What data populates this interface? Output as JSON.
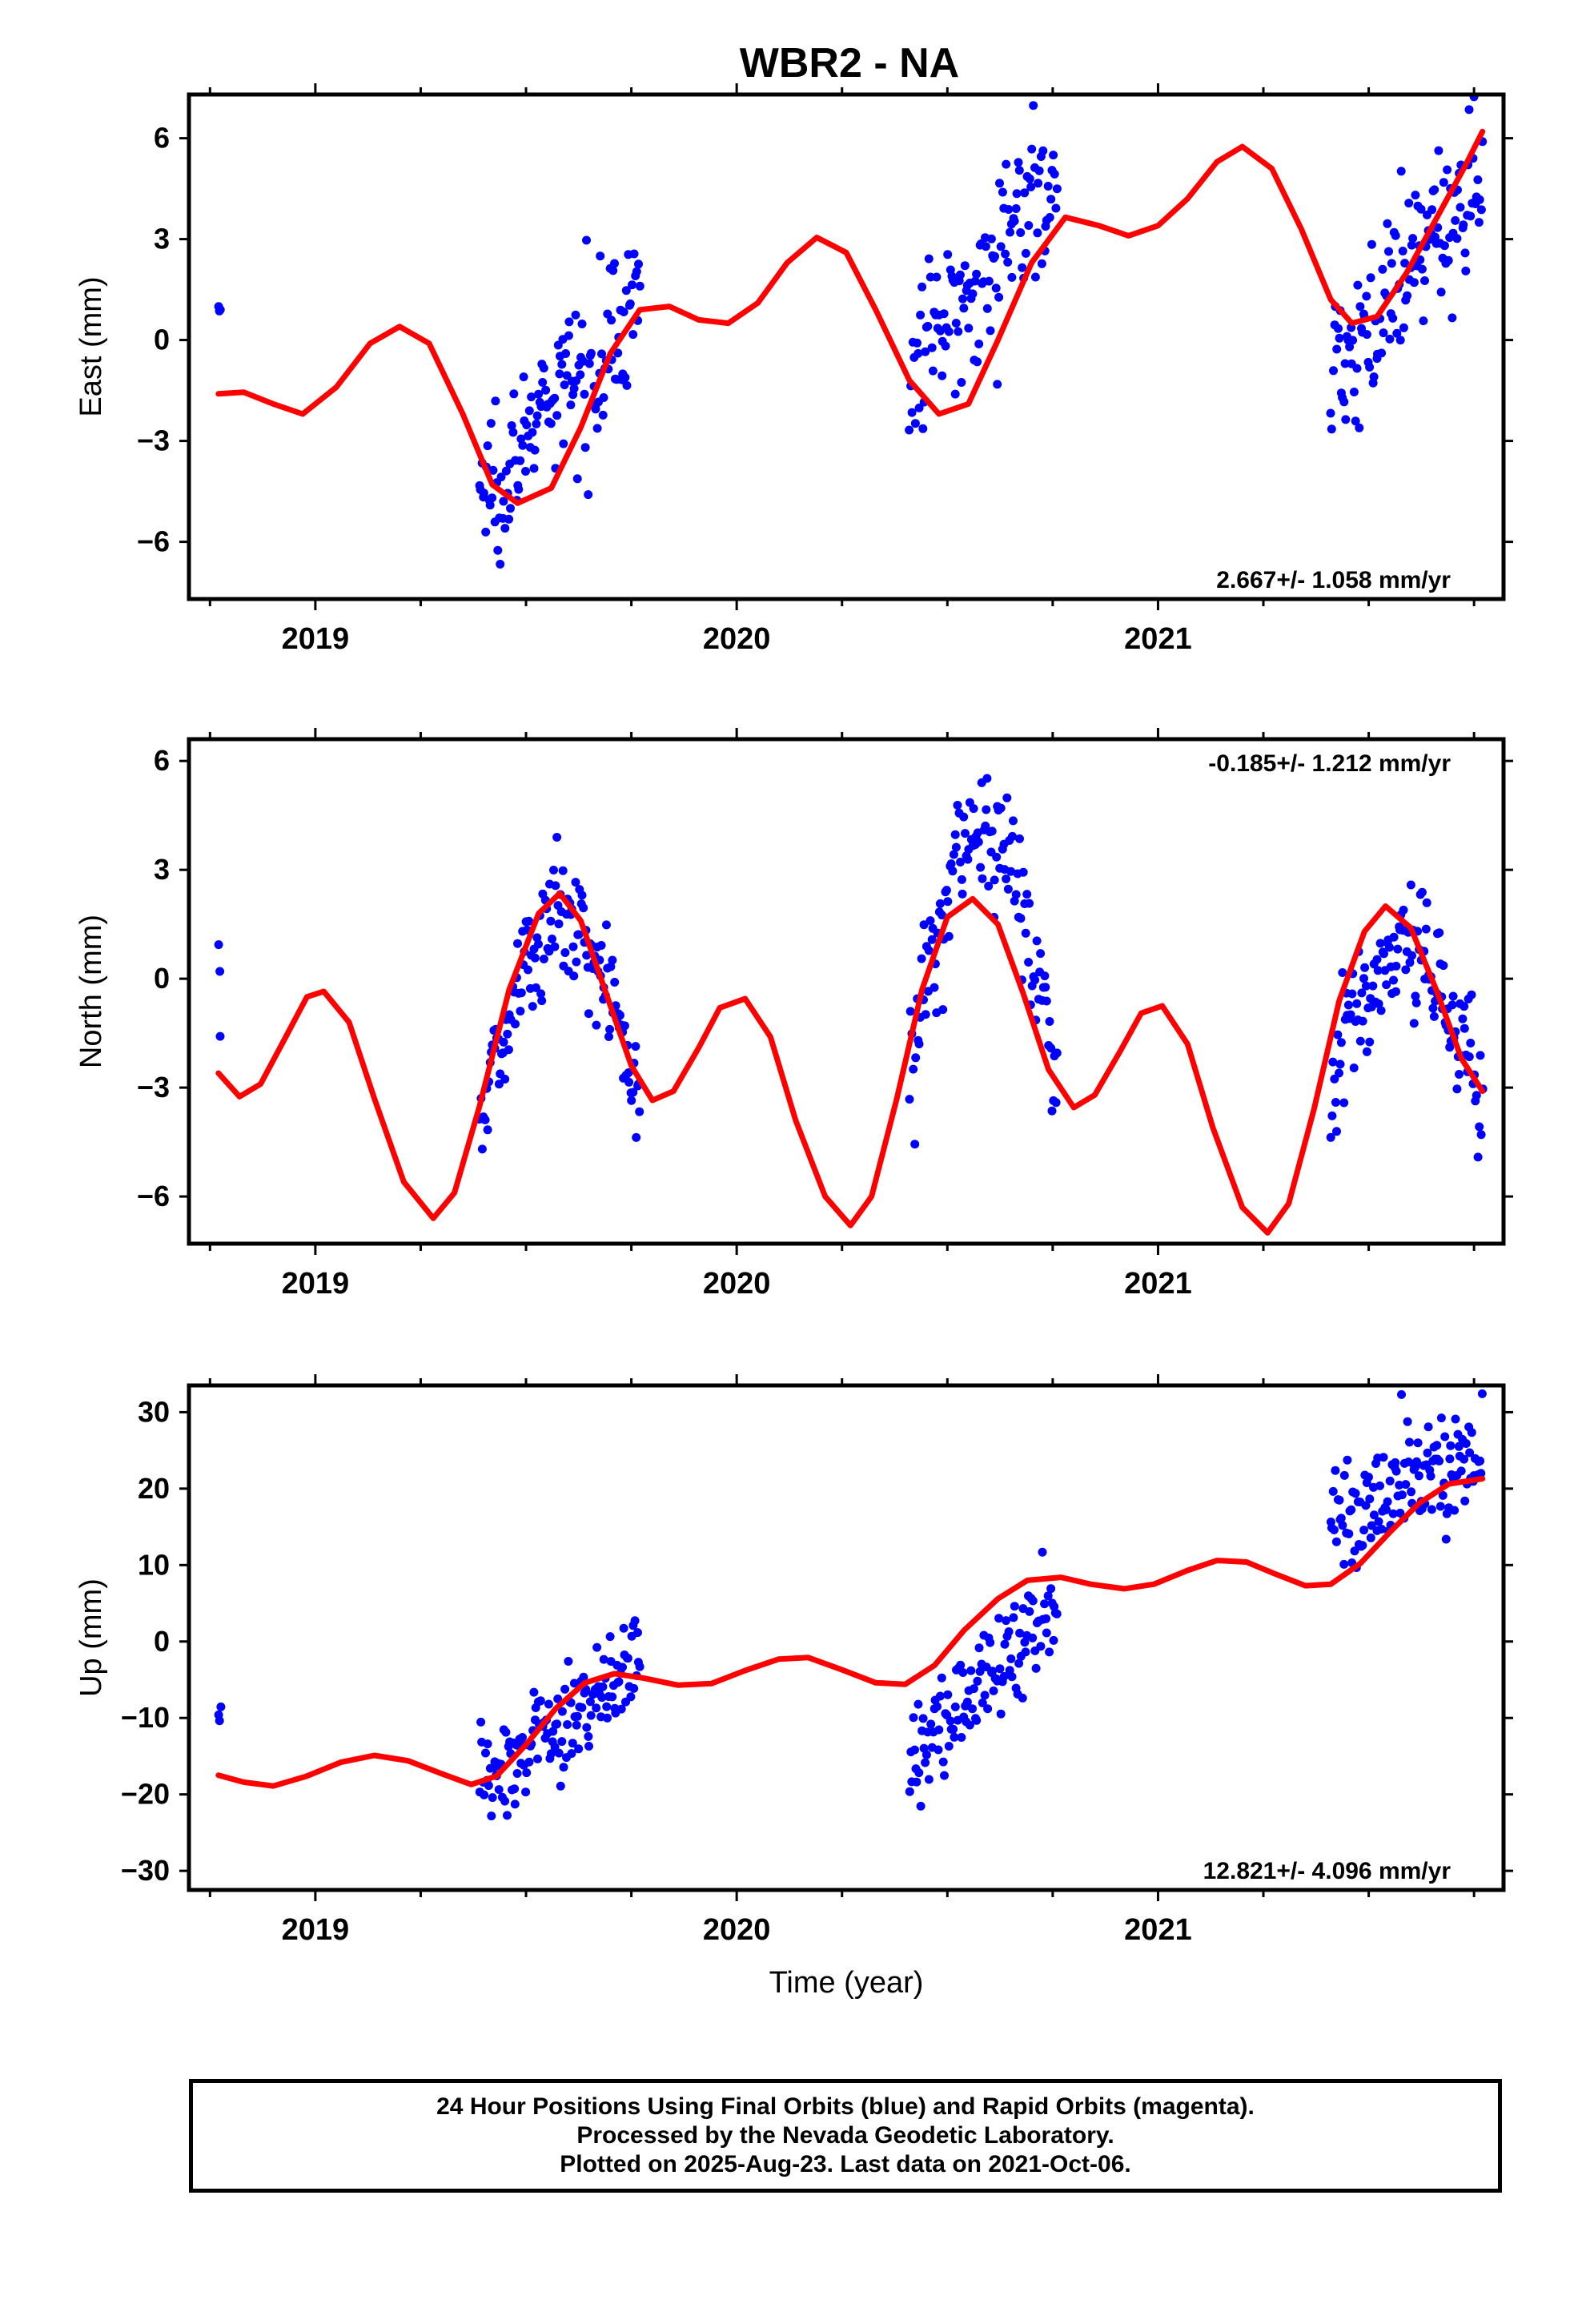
{
  "title": "WBR2 - NA",
  "colors": {
    "data_points": "#0000ff",
    "model_line": "#ff0000",
    "frame": "#000000"
  },
  "chart_data": [
    {
      "type": "scatter",
      "panel": "east",
      "ylabel": "East (mm)",
      "xlabel": "",
      "xlim": [
        2018.7,
        2021.82
      ],
      "ylim": [
        -7.7,
        7.3
      ],
      "yticks": [
        -6,
        -3,
        0,
        3,
        6
      ],
      "yticklabels": [
        "−6",
        "−3",
        "0",
        "3",
        "6"
      ],
      "xticks": [
        2019,
        2020,
        2021
      ],
      "xticklabels": [
        "2019",
        "2020",
        "2021"
      ],
      "rate_label": "2.667+/- 1.058 mm/yr",
      "rate_position": "bottom-right",
      "grid": false,
      "series": [
        {
          "role": "data",
          "segments": [
            {
              "start": 2018.77,
              "end": 2018.775,
              "n": 3,
              "y_start": 1.0,
              "y_end": 1.0,
              "noise": 1.0
            },
            {
              "start": 2019.39,
              "end": 2019.77,
              "n": 140,
              "y_start": -4.6,
              "y_end": 1.2,
              "noise": 1.6
            },
            {
              "start": 2020.41,
              "end": 2020.76,
              "n": 120,
              "y_start": -1.0,
              "y_end": 5.2,
              "noise": 1.7
            },
            {
              "start": 2021.41,
              "end": 2021.77,
              "n": 130,
              "y_start": -1.2,
              "y_end": 5.0,
              "noise": 1.6
            }
          ]
        },
        {
          "role": "model",
          "points": [
            [
              2018.77,
              -1.6
            ],
            [
              2018.83,
              -1.55
            ],
            [
              2018.9,
              -1.9
            ],
            [
              2018.97,
              -2.2
            ],
            [
              2019.05,
              -1.4
            ],
            [
              2019.13,
              -0.1
            ],
            [
              2019.2,
              0.4
            ],
            [
              2019.27,
              -0.1
            ],
            [
              2019.35,
              -2.2
            ],
            [
              2019.42,
              -4.3
            ],
            [
              2019.48,
              -4.85
            ],
            [
              2019.56,
              -4.4
            ],
            [
              2019.63,
              -2.6
            ],
            [
              2019.7,
              -0.4
            ],
            [
              2019.77,
              0.9
            ],
            [
              2019.84,
              1.0
            ],
            [
              2019.91,
              0.6
            ],
            [
              2019.98,
              0.5
            ],
            [
              2020.05,
              1.1
            ],
            [
              2020.12,
              2.3
            ],
            [
              2020.19,
              3.05
            ],
            [
              2020.26,
              2.6
            ],
            [
              2020.33,
              0.9
            ],
            [
              2020.41,
              -1.2
            ],
            [
              2020.48,
              -2.2
            ],
            [
              2020.55,
              -1.9
            ],
            [
              2020.62,
              0.0
            ],
            [
              2020.7,
              2.3
            ],
            [
              2020.78,
              3.65
            ],
            [
              2020.86,
              3.4
            ],
            [
              2020.93,
              3.1
            ],
            [
              2021.0,
              3.4
            ],
            [
              2021.07,
              4.2
            ],
            [
              2021.14,
              5.3
            ],
            [
              2021.2,
              5.75
            ],
            [
              2021.27,
              5.1
            ],
            [
              2021.34,
              3.3
            ],
            [
              2021.41,
              1.2
            ],
            [
              2021.46,
              0.5
            ],
            [
              2021.52,
              0.7
            ],
            [
              2021.59,
              2.0
            ],
            [
              2021.66,
              3.6
            ],
            [
              2021.73,
              5.2
            ],
            [
              2021.77,
              6.2
            ]
          ]
        }
      ]
    },
    {
      "type": "scatter",
      "panel": "north",
      "ylabel": "North (mm)",
      "xlabel": "",
      "xlim": [
        2018.7,
        2021.82
      ],
      "ylim": [
        -7.3,
        6.6
      ],
      "yticks": [
        -6,
        -3,
        0,
        3,
        6
      ],
      "yticklabels": [
        "−6",
        "−3",
        "0",
        "3",
        "6"
      ],
      "xticks": [
        2019,
        2020,
        2021
      ],
      "xticklabels": [
        "2019",
        "2020",
        "2021"
      ],
      "rate_label": "-0.185+/- 1.212 mm/yr",
      "rate_position": "top-right",
      "grid": false,
      "series": [
        {
          "role": "data",
          "segments": [
            {
              "start": 2018.77,
              "end": 2018.775,
              "n": 3,
              "y_start": -0.2,
              "y_end": -0.2,
              "noise": 1.0
            },
            {
              "start": 2019.39,
              "end": 2019.77,
              "n": 140,
              "y_start": -4.0,
              "y_end": -3.5,
              "noise": 1.3,
              "bump": 5.5
            },
            {
              "start": 2020.41,
              "end": 2020.76,
              "n": 120,
              "y_start": -2.0,
              "y_end": -2.5,
              "noise": 1.3,
              "bump": 6.5
            },
            {
              "start": 2021.41,
              "end": 2021.77,
              "n": 130,
              "y_start": -3.0,
              "y_end": -3.5,
              "noise": 1.3,
              "bump": 4.0
            }
          ]
        },
        {
          "role": "model",
          "points": [
            [
              2018.77,
              -2.6
            ],
            [
              2018.82,
              -3.25
            ],
            [
              2018.87,
              -2.9
            ],
            [
              2018.93,
              -1.6
            ],
            [
              2018.98,
              -0.5
            ],
            [
              2019.02,
              -0.35
            ],
            [
              2019.08,
              -1.2
            ],
            [
              2019.14,
              -3.3
            ],
            [
              2019.21,
              -5.6
            ],
            [
              2019.28,
              -6.6
            ],
            [
              2019.33,
              -5.9
            ],
            [
              2019.39,
              -3.5
            ],
            [
              2019.46,
              -0.3
            ],
            [
              2019.53,
              1.8
            ],
            [
              2019.58,
              2.35
            ],
            [
              2019.63,
              1.6
            ],
            [
              2019.69,
              -0.4
            ],
            [
              2019.75,
              -2.4
            ],
            [
              2019.8,
              -3.35
            ],
            [
              2019.85,
              -3.1
            ],
            [
              2019.91,
              -1.9
            ],
            [
              2019.96,
              -0.8
            ],
            [
              2020.02,
              -0.55
            ],
            [
              2020.08,
              -1.6
            ],
            [
              2020.14,
              -3.9
            ],
            [
              2020.21,
              -6.0
            ],
            [
              2020.27,
              -6.8
            ],
            [
              2020.32,
              -6.0
            ],
            [
              2020.38,
              -3.3
            ],
            [
              2020.44,
              -0.3
            ],
            [
              2020.5,
              1.7
            ],
            [
              2020.56,
              2.2
            ],
            [
              2020.62,
              1.5
            ],
            [
              2020.68,
              -0.4
            ],
            [
              2020.74,
              -2.5
            ],
            [
              2020.8,
              -3.55
            ],
            [
              2020.85,
              -3.2
            ],
            [
              2020.91,
              -2.0
            ],
            [
              2020.96,
              -0.95
            ],
            [
              2021.01,
              -0.75
            ],
            [
              2021.07,
              -1.8
            ],
            [
              2021.13,
              -4.1
            ],
            [
              2021.2,
              -6.3
            ],
            [
              2021.26,
              -7.0
            ],
            [
              2021.31,
              -6.2
            ],
            [
              2021.37,
              -3.6
            ],
            [
              2021.43,
              -0.6
            ],
            [
              2021.49,
              1.3
            ],
            [
              2021.54,
              2.0
            ],
            [
              2021.6,
              1.4
            ],
            [
              2021.66,
              -0.3
            ],
            [
              2021.72,
              -2.2
            ],
            [
              2021.77,
              -3.1
            ]
          ]
        }
      ]
    },
    {
      "type": "scatter",
      "panel": "up",
      "ylabel": "Up (mm)",
      "xlabel": "Time (year)",
      "xlim": [
        2018.7,
        2021.82
      ],
      "ylim": [
        -32.5,
        33.5
      ],
      "yticks": [
        -30,
        -20,
        -10,
        0,
        10,
        20,
        30
      ],
      "yticklabels": [
        "−30",
        "−20",
        "−10",
        "0",
        "10",
        "20",
        "30"
      ],
      "xticks": [
        2019,
        2020,
        2021
      ],
      "xticklabels": [
        "2019",
        "2020",
        "2021"
      ],
      "rate_label": "12.821+/- 4.096 mm/yr",
      "rate_position": "bottom-right",
      "grid": false,
      "series": [
        {
          "role": "data",
          "segments": [
            {
              "start": 2018.77,
              "end": 2018.775,
              "n": 3,
              "y_start": -9.0,
              "y_end": -9.0,
              "noise": 1.5
            },
            {
              "start": 2019.39,
              "end": 2019.77,
              "n": 140,
              "y_start": -18.0,
              "y_end": -3.5,
              "noise": 5.0
            },
            {
              "start": 2020.41,
              "end": 2020.76,
              "n": 120,
              "y_start": -15.0,
              "y_end": 4.5,
              "noise": 5.0
            },
            {
              "start": 2021.41,
              "end": 2021.77,
              "n": 130,
              "y_start": 16.0,
              "y_end": 25.0,
              "noise": 5.0
            }
          ]
        },
        {
          "role": "model",
          "points": [
            [
              2018.77,
              -17.5
            ],
            [
              2018.83,
              -18.4
            ],
            [
              2018.9,
              -18.9
            ],
            [
              2018.98,
              -17.6
            ],
            [
              2019.06,
              -15.8
            ],
            [
              2019.14,
              -14.9
            ],
            [
              2019.22,
              -15.6
            ],
            [
              2019.3,
              -17.3
            ],
            [
              2019.37,
              -18.7
            ],
            [
              2019.43,
              -17.6
            ],
            [
              2019.5,
              -13.5
            ],
            [
              2019.57,
              -8.8
            ],
            [
              2019.64,
              -5.4
            ],
            [
              2019.71,
              -4.2
            ],
            [
              2019.78,
              -4.8
            ],
            [
              2019.86,
              -5.7
            ],
            [
              2019.94,
              -5.5
            ],
            [
              2020.02,
              -3.8
            ],
            [
              2020.1,
              -2.3
            ],
            [
              2020.17,
              -2.1
            ],
            [
              2020.25,
              -3.7
            ],
            [
              2020.33,
              -5.4
            ],
            [
              2020.4,
              -5.6
            ],
            [
              2020.47,
              -3.1
            ],
            [
              2020.54,
              1.5
            ],
            [
              2020.62,
              5.6
            ],
            [
              2020.69,
              8.0
            ],
            [
              2020.77,
              8.4
            ],
            [
              2020.84,
              7.5
            ],
            [
              2020.92,
              6.9
            ],
            [
              2020.99,
              7.5
            ],
            [
              2021.07,
              9.3
            ],
            [
              2021.14,
              10.6
            ],
            [
              2021.21,
              10.4
            ],
            [
              2021.28,
              8.8
            ],
            [
              2021.35,
              7.3
            ],
            [
              2021.41,
              7.5
            ],
            [
              2021.48,
              10.2
            ],
            [
              2021.55,
              14.3
            ],
            [
              2021.62,
              18.1
            ],
            [
              2021.69,
              20.6
            ],
            [
              2021.77,
              21.3
            ]
          ]
        }
      ]
    }
  ],
  "caption": {
    "lines": [
      "24 Hour Positions Using Final Orbits (blue) and Rapid Orbits (magenta).",
      "Processed by the Nevada Geodetic Laboratory.",
      "Plotted on 2025-Aug-23. Last data on 2021-Oct-06."
    ]
  }
}
